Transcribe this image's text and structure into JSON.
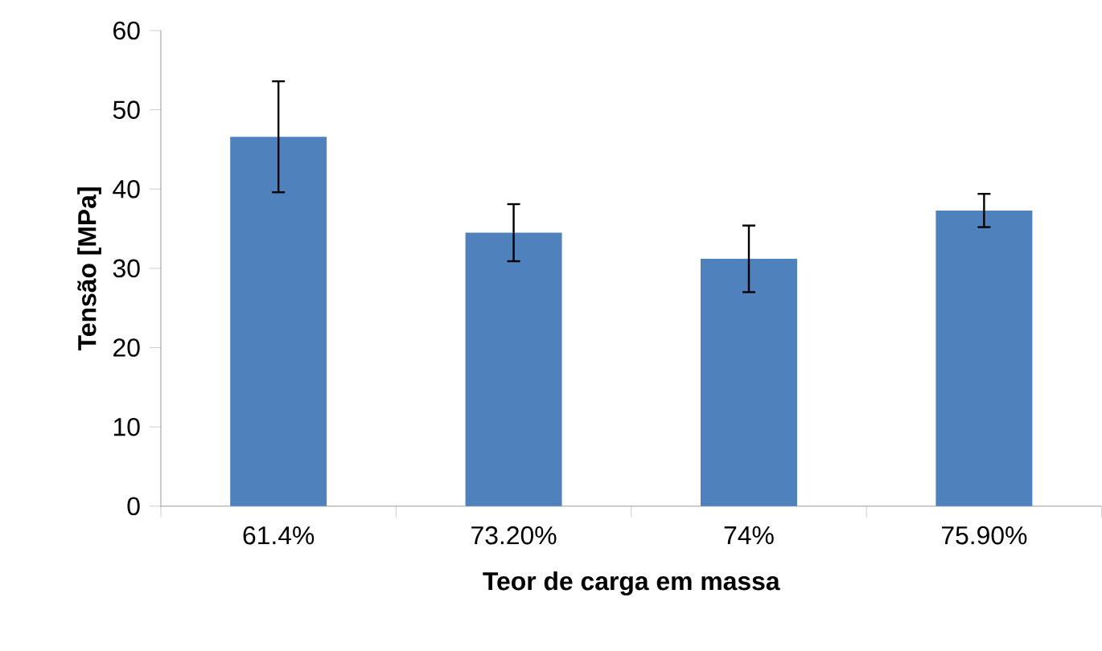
{
  "chart_data": {
    "type": "bar",
    "xlabel": "Teor de carga em massa",
    "ylabel": "Tensão [MPa]",
    "categories": [
      "61.4%",
      "73.20%",
      "74%",
      "75.90%"
    ],
    "values": [
      46.6,
      34.5,
      31.2,
      37.3
    ],
    "errors": [
      7.0,
      3.6,
      4.2,
      2.1
    ],
    "color": "#4f81bd",
    "ylim": [
      0,
      60
    ],
    "yticks": [
      0,
      10,
      20,
      30,
      40,
      50,
      60
    ],
    "grid": false
  }
}
